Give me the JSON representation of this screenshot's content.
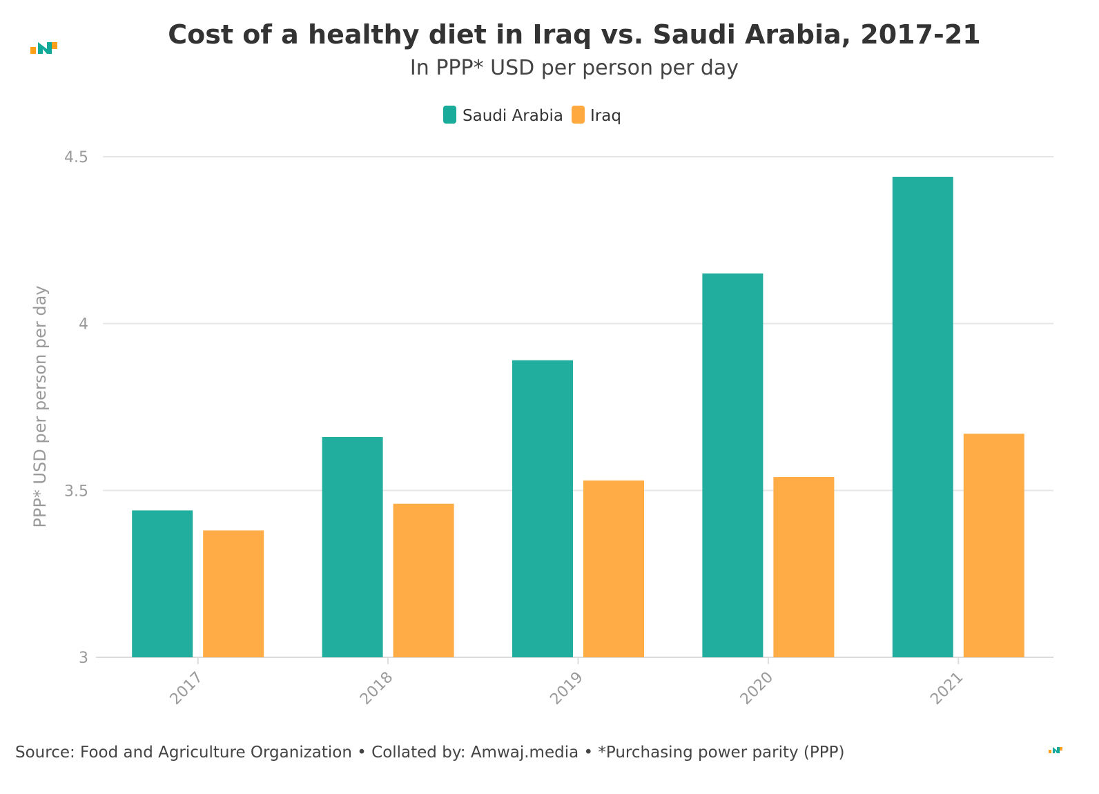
{
  "chart_data": {
    "type": "bar",
    "title": "Cost of a healthy diet in Iraq vs. Saudi Arabia, 2017-21",
    "subtitle": "In PPP* USD per person per day",
    "xlabel": "",
    "ylabel": "PPP* USD per person per day",
    "categories": [
      "2017",
      "2018",
      "2019",
      "2020",
      "2021"
    ],
    "series": [
      {
        "name": "Saudi Arabia",
        "color": "#1aab9b",
        "values": [
          3.44,
          3.66,
          3.89,
          4.15,
          4.44
        ]
      },
      {
        "name": "Iraq",
        "color": "#ffa940",
        "values": [
          3.38,
          3.46,
          3.53,
          3.54,
          3.67
        ]
      }
    ],
    "ylim": [
      3,
      4.5
    ],
    "yticks": [
      3,
      3.5,
      4,
      4.5
    ],
    "ytick_labels": [
      "3",
      "3.5",
      "4",
      "4.5"
    ],
    "grid": true,
    "legend_position": "top-center"
  },
  "footer": {
    "source": "Source: Food and Agriculture Organization • Collated by: Amwaj.media • *Purchasing power parity (PPP)"
  },
  "logo": {
    "icon": "amwaj-logo-icon",
    "colors": [
      "#ff9f1c",
      "#12a89a"
    ]
  }
}
